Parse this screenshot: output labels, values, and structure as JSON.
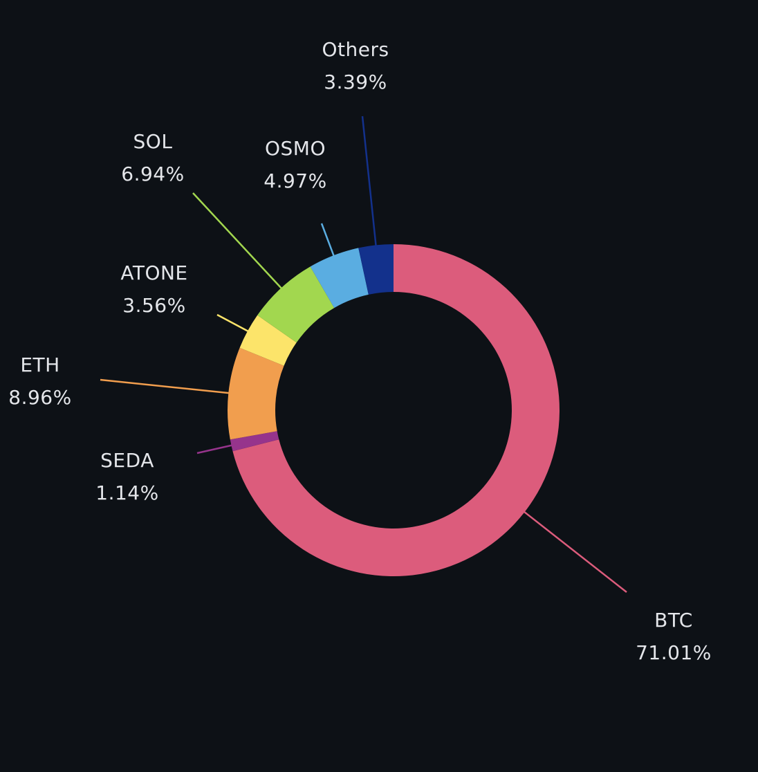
{
  "chart_data": {
    "type": "pie",
    "style": "donut",
    "start_angle": "12 o'clock",
    "direction": "clockwise",
    "background": "#0d1116",
    "label_color": "#e4e6ea",
    "slices": [
      {
        "name": "BTC",
        "percent_label": "71.01%",
        "value": 71.01,
        "color": "#dc5c7c"
      },
      {
        "name": "SEDA",
        "percent_label": "1.14%",
        "value": 1.14,
        "color": "#96348c"
      },
      {
        "name": "ETH",
        "percent_label": "8.96%",
        "value": 8.96,
        "color": "#f19e4e"
      },
      {
        "name": "ATONE",
        "percent_label": "3.56%",
        "value": 3.56,
        "color": "#fce46a"
      },
      {
        "name": "SOL",
        "percent_label": "6.94%",
        "value": 6.94,
        "color": "#a2d74f"
      },
      {
        "name": "OSMO",
        "percent_label": "4.97%",
        "value": 4.97,
        "color": "#5aade1"
      },
      {
        "name": "Others",
        "percent_label": "3.39%",
        "value": 3.39,
        "color": "#13318c"
      }
    ]
  }
}
